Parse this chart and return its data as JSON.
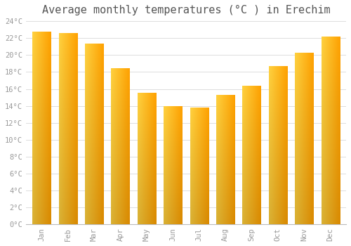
{
  "title": "Average monthly temperatures (°C ) in Erechim",
  "months": [
    "Jan",
    "Feb",
    "Mar",
    "Apr",
    "May",
    "Jun",
    "Jul",
    "Aug",
    "Sep",
    "Oct",
    "Nov",
    "Dec"
  ],
  "values": [
    22.7,
    22.5,
    21.3,
    18.4,
    15.5,
    13.9,
    13.7,
    15.2,
    16.3,
    18.6,
    20.2,
    22.1
  ],
  "bar_color_left": "#FFD060",
  "bar_color_right": "#FFA000",
  "bar_color_bottom": "#E08000",
  "background_color": "#FFFFFF",
  "grid_color": "#DDDDDD",
  "text_color": "#999999",
  "ylim": [
    0,
    24
  ],
  "yticks": [
    0,
    2,
    4,
    6,
    8,
    10,
    12,
    14,
    16,
    18,
    20,
    22,
    24
  ],
  "title_fontsize": 11,
  "bar_width": 0.7
}
